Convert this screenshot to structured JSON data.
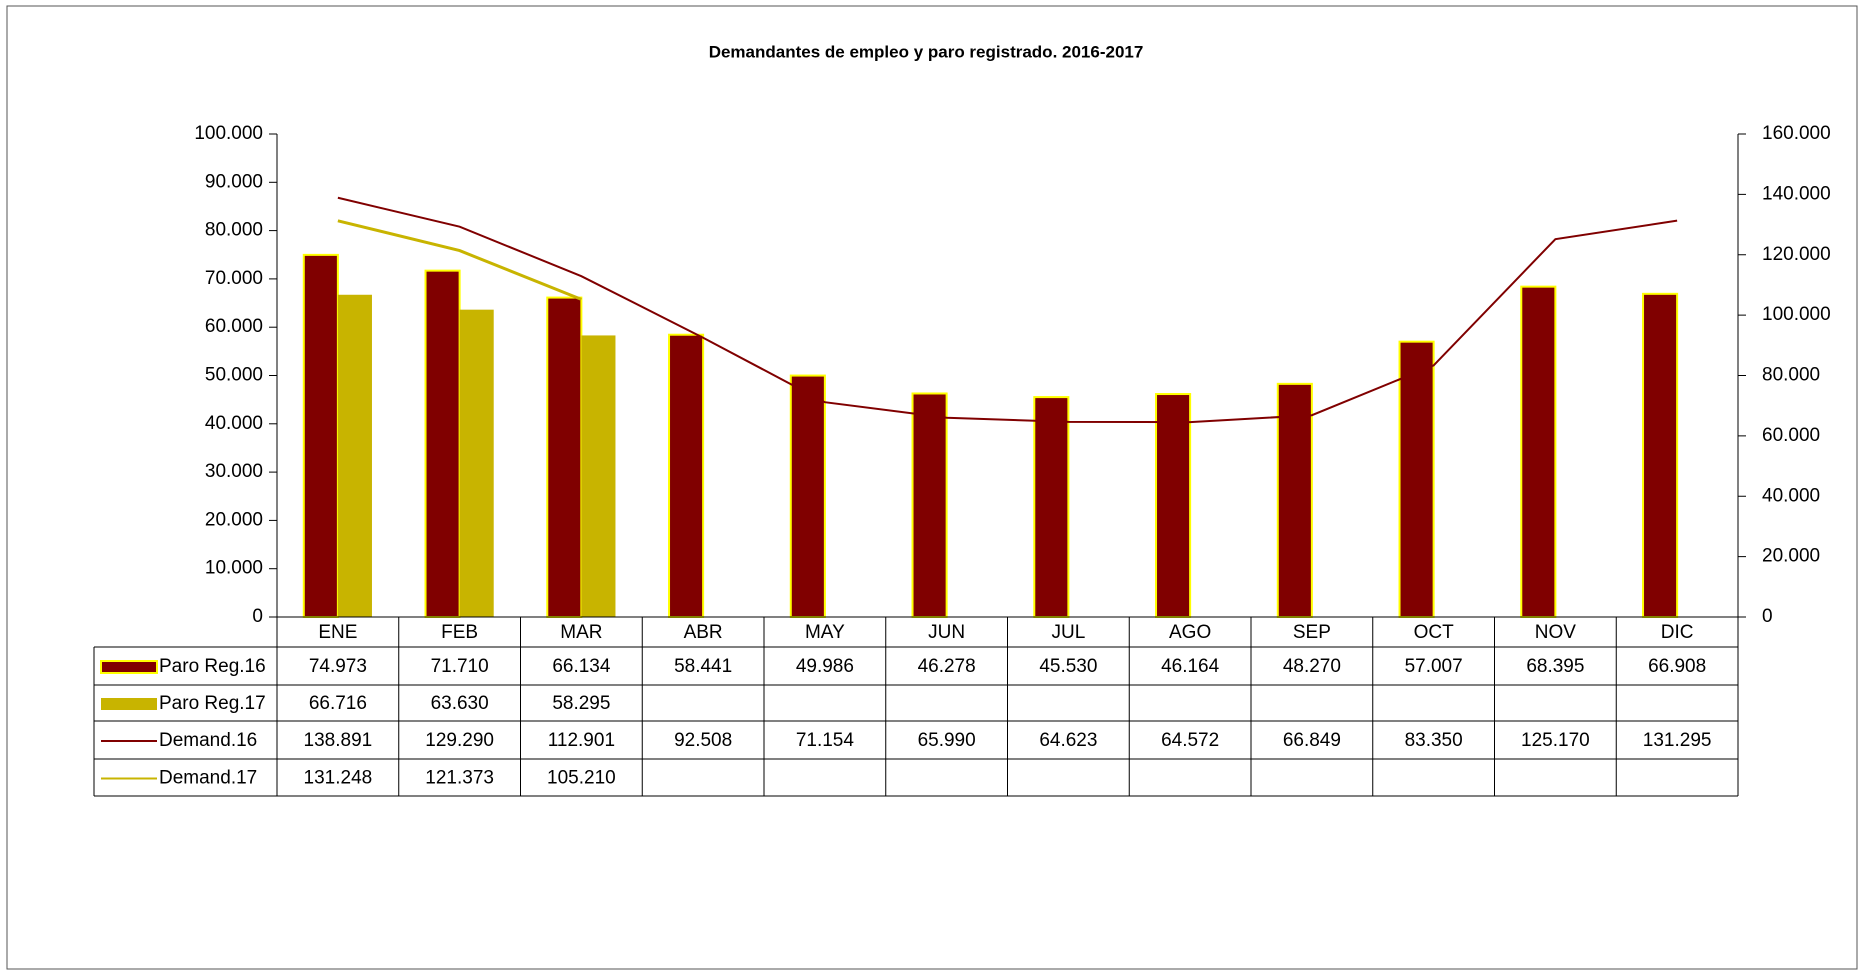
{
  "chart_data": {
    "type": "bar",
    "title": "Demandantes de empleo y paro registrado. 2016-2017",
    "categories": [
      "ENE",
      "FEB",
      "MAR",
      "ABR",
      "MAY",
      "JUN",
      "JUL",
      "AGO",
      "SEP",
      "OCT",
      "NOV",
      "DIC"
    ],
    "series": [
      {
        "name": "Paro Reg.16",
        "type": "bar",
        "color": "#800000",
        "values": [
          74973,
          71710,
          66134,
          58441,
          49986,
          46278,
          45530,
          46164,
          48270,
          57007,
          68395,
          66908
        ],
        "value_labels": [
          "74.973",
          "71.710",
          "66.134",
          "58.441",
          "49.986",
          "46.278",
          "45.530",
          "46.164",
          "48.270",
          "57.007",
          "68.395",
          "66.908"
        ]
      },
      {
        "name": "Paro Reg.17",
        "type": "bar",
        "color": "#c8b400",
        "values": [
          66716,
          63630,
          58295,
          null,
          null,
          null,
          null,
          null,
          null,
          null,
          null,
          null
        ],
        "value_labels": [
          "66.716",
          "63.630",
          "58.295",
          null,
          null,
          null,
          null,
          null,
          null,
          null,
          null,
          null
        ]
      },
      {
        "name": "Demand.16",
        "type": "line",
        "axis": "y2",
        "color": "#800000",
        "values": [
          138891,
          129290,
          112901,
          92508,
          71154,
          65990,
          64623,
          64572,
          66849,
          83350,
          125170,
          131295
        ],
        "value_labels": [
          "138.891",
          "129.290",
          "112.901",
          "92.508",
          "71.154",
          "65.990",
          "64.623",
          "64.572",
          "66.849",
          "83.350",
          "125.170",
          "131.295"
        ]
      },
      {
        "name": "Demand.17",
        "type": "line",
        "axis": "y2",
        "color": "#c8b400",
        "values": [
          131248,
          121373,
          105210,
          null,
          null,
          null,
          null,
          null,
          null,
          null,
          null,
          null
        ],
        "value_labels": [
          "131.248",
          "121.373",
          "105.210",
          null,
          null,
          null,
          null,
          null,
          null,
          null,
          null,
          null
        ]
      }
    ],
    "ylim": [
      0,
      100000
    ],
    "yticks": [
      0,
      {
        "value": 10000,
        "label": "10.000"
      },
      {
        "value": 20000,
        "label": "20.000"
      },
      {
        "value": 30000,
        "label": "30.000"
      },
      {
        "value": 40000,
        "label": "40.000"
      },
      {
        "value": 50000,
        "label": "50.000"
      },
      {
        "value": 60000,
        "label": "60.000"
      },
      {
        "value": 70000,
        "label": "70.000"
      },
      {
        "value": 80000,
        "label": "80.000"
      },
      {
        "value": 90000,
        "label": "90.000"
      },
      {
        "value": 100000,
        "label": "100.000"
      }
    ],
    "y2lim": [
      0,
      160000
    ],
    "y2ticks": [
      0,
      {
        "value": 20000,
        "label": "20.000"
      },
      {
        "value": 40000,
        "label": "40.000"
      },
      {
        "value": 60000,
        "label": "60.000"
      },
      {
        "value": 80000,
        "label": "80.000"
      },
      {
        "value": 100000,
        "label": "100.000"
      },
      {
        "value": 120000,
        "label": "120.000"
      },
      {
        "value": 140000,
        "label": "140.000"
      },
      {
        "value": 160000,
        "label": "160.000"
      }
    ],
    "grid": false
  }
}
